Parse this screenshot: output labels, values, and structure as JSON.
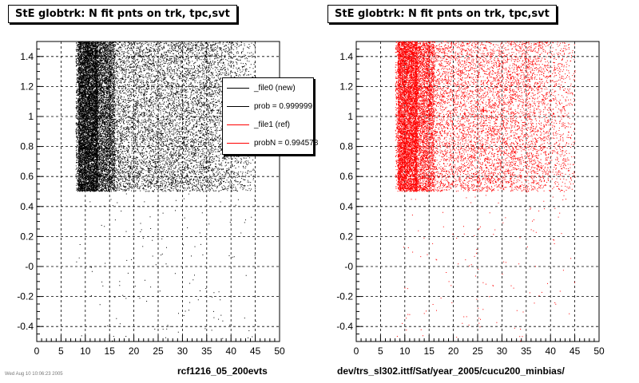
{
  "charts": [
    {
      "title": "StE globtrk: N fit pnts on trk, tpc,svt",
      "footer": "rcf1216_05_200evts",
      "color": "#000000",
      "chart_data": {
        "type": "scatter",
        "title": "StE globtrk: N fit pnts on trk, tpc,svt",
        "xlim": [
          0,
          50
        ],
        "ylim": [
          -0.5,
          1.5
        ],
        "x_ticks": [
          "0",
          "5",
          "10",
          "15",
          "20",
          "25",
          "30",
          "35",
          "40",
          "45",
          "50"
        ],
        "y_ticks": [
          "-0.4",
          "-0.2",
          "-0",
          "0.2",
          "0.4",
          "0.6",
          "0.8",
          "1",
          "1.2",
          "1.4"
        ],
        "grid": true,
        "dense_region": {
          "x": [
            8,
            45
          ],
          "y": [
            0.5,
            1.5
          ]
        },
        "sparse_region": {
          "x": [
            8,
            45
          ],
          "y": [
            -0.5,
            0.5
          ]
        },
        "peak_x": 10
      }
    },
    {
      "title": "StE globtrk: N fit pnts on trk, tpc,svt",
      "footer": "dev/trs_sl302.ittf/Sat/year_2005/cucu200_minbias/",
      "color": "#ff0000",
      "chart_data": {
        "type": "scatter",
        "title": "StE globtrk: N fit pnts on trk, tpc,svt",
        "xlim": [
          0,
          50
        ],
        "ylim": [
          -0.5,
          1.5
        ],
        "x_ticks": [
          "0",
          "5",
          "10",
          "15",
          "20",
          "25",
          "30",
          "35",
          "40",
          "45",
          "50"
        ],
        "y_ticks": [
          "-0.4",
          "-0.2",
          "-0",
          "0.2",
          "0.4",
          "0.6",
          "0.8",
          "1",
          "1.2",
          "1.4"
        ],
        "grid": true,
        "dense_region": {
          "x": [
            8,
            45
          ],
          "y": [
            0.5,
            1.5
          ]
        },
        "sparse_region": {
          "x": [
            8,
            45
          ],
          "y": [
            -0.5,
            0.5
          ]
        },
        "peak_x": 10
      }
    }
  ],
  "legend": {
    "entries": [
      {
        "label": "_file0 (new)",
        "color": "#000000"
      },
      {
        "label": "prob = 0.999999",
        "color": "#000000"
      },
      {
        "label": "_file1 (ref)",
        "color": "#ff0000"
      },
      {
        "label": "probN = 0.994578",
        "color": "#ff0000"
      }
    ]
  },
  "timestamp": "Wed Aug 10 10:06:23 2005"
}
